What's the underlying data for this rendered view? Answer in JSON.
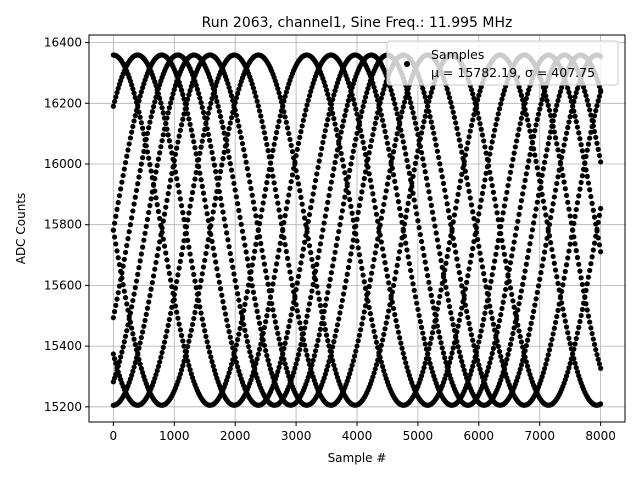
{
  "chart_data": {
    "type": "scatter",
    "title": "Run 2063, channel1, Sine Freq.: 11.995 MHz",
    "xlabel": "Sample #",
    "ylabel": "ADC Counts",
    "xlim": [
      -400,
      8400
    ],
    "ylim": [
      15150,
      16425
    ],
    "x_ticks": [
      0,
      1000,
      2000,
      3000,
      4000,
      5000,
      6000,
      7000,
      8000
    ],
    "x_tick_labels": [
      "0",
      "1000",
      "2000",
      "3000",
      "4000",
      "5000",
      "6000",
      "7000",
      "8000"
    ],
    "y_ticks": [
      15200,
      15400,
      15600,
      15800,
      16000,
      16200,
      16400
    ],
    "y_tick_labels": [
      "15200",
      "15400",
      "15600",
      "15800",
      "16000",
      "16200",
      "16400"
    ],
    "grid": true,
    "legend": {
      "placement": "top-right",
      "entries": [
        {
          "label": "Samples",
          "stats": "μ = 15782.19, σ = 407.75"
        }
      ]
    },
    "series": [
      {
        "name": "Samples",
        "color": "#000000",
        "marker": "circle",
        "mean": 15782.19,
        "amplitude": 577,
        "n_points": 8000,
        "traces": [
          {
            "phase_deg": 90.0,
            "period_samples": 3175
          },
          {
            "phase_deg": 45.0,
            "period_samples": 3175
          },
          {
            "phase_deg": 0.0,
            "period_samples": 3175
          },
          {
            "phase_deg": -30.0,
            "period_samples": 3175
          },
          {
            "phase_deg": -60.0,
            "period_samples": 3175
          },
          {
            "phase_deg": -90.0,
            "period_samples": 3175
          },
          {
            "phase_deg": -135.0,
            "period_samples": 3175
          },
          {
            "phase_deg": -180.0,
            "period_samples": 3175
          }
        ]
      }
    ]
  }
}
